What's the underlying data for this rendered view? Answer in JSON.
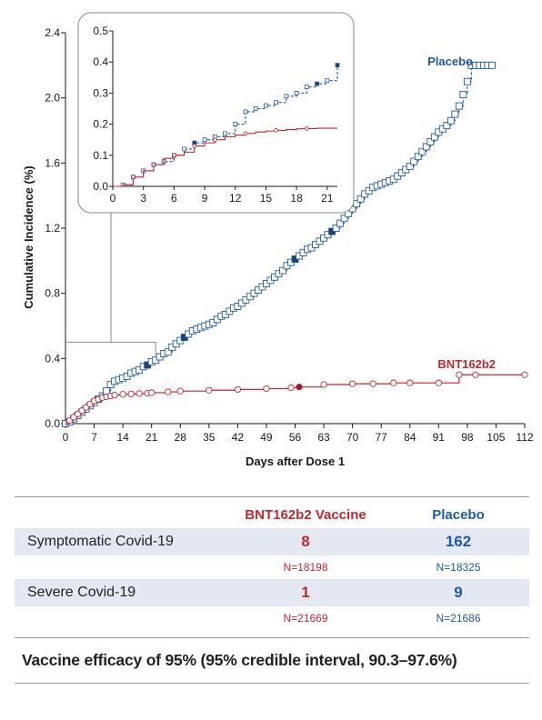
{
  "chart_data": {
    "type": "line",
    "xlabel": "Days after Dose 1",
    "ylabel": "Cumulative Incidence (%)",
    "xlim": [
      0,
      112
    ],
    "ylim": [
      0,
      2.4
    ],
    "x_ticks": [
      "0",
      "7",
      "14",
      "21",
      "28",
      "35",
      "42",
      "49",
      "56",
      "63",
      "70",
      "77",
      "84",
      "91",
      "98",
      "105",
      "112"
    ],
    "y_ticks": [
      "0.0",
      "0.4",
      "0.8",
      "1.2",
      "1.6",
      "2.0",
      "2.4"
    ],
    "series": [
      {
        "name": "Placebo",
        "color": "#1f5aa6",
        "marker": "square",
        "x": [
          0,
          1,
          2,
          3,
          4,
          5,
          6,
          7,
          8,
          9,
          10,
          11,
          12,
          13,
          14,
          15,
          16,
          17,
          18,
          19,
          20,
          21,
          22,
          23,
          24,
          25,
          26,
          27,
          28,
          29,
          30,
          31,
          32,
          33,
          34,
          35,
          36,
          37,
          38,
          39,
          40,
          41,
          42,
          43,
          44,
          45,
          46,
          47,
          48,
          49,
          50,
          51,
          52,
          53,
          54,
          55,
          56,
          57,
          58,
          59,
          60,
          61,
          62,
          63,
          64,
          65,
          66,
          67,
          68,
          69,
          70,
          71,
          72,
          73,
          74,
          75,
          76,
          77,
          78,
          79,
          80,
          81,
          82,
          83,
          84,
          85,
          86,
          87,
          88,
          89,
          90,
          91,
          92,
          93,
          94,
          95,
          96,
          97,
          98,
          99,
          100,
          101,
          102,
          103,
          104
        ],
        "y": [
          0,
          0.01,
          0.03,
          0.05,
          0.07,
          0.09,
          0.11,
          0.13,
          0.15,
          0.17,
          0.2,
          0.24,
          0.26,
          0.27,
          0.28,
          0.29,
          0.31,
          0.32,
          0.33,
          0.35,
          0.36,
          0.38,
          0.39,
          0.41,
          0.43,
          0.44,
          0.47,
          0.49,
          0.51,
          0.53,
          0.55,
          0.57,
          0.58,
          0.59,
          0.6,
          0.61,
          0.62,
          0.64,
          0.66,
          0.67,
          0.69,
          0.71,
          0.72,
          0.74,
          0.76,
          0.78,
          0.8,
          0.82,
          0.84,
          0.86,
          0.88,
          0.9,
          0.92,
          0.94,
          0.97,
          0.99,
          1.01,
          1.03,
          1.05,
          1.07,
          1.08,
          1.1,
          1.12,
          1.14,
          1.16,
          1.18,
          1.2,
          1.23,
          1.26,
          1.29,
          1.32,
          1.35,
          1.38,
          1.41,
          1.43,
          1.45,
          1.46,
          1.47,
          1.48,
          1.49,
          1.5,
          1.52,
          1.54,
          1.56,
          1.58,
          1.61,
          1.64,
          1.67,
          1.7,
          1.73,
          1.76,
          1.79,
          1.81,
          1.83,
          1.86,
          1.9,
          1.95,
          2.02,
          2.1,
          2.2,
          2.2,
          2.2,
          2.2,
          2.2,
          2.2
        ]
      },
      {
        "name": "BNT162b2",
        "color": "#c3282f",
        "marker": "circle",
        "x": [
          0,
          1,
          2,
          3,
          4,
          5,
          6,
          7,
          8,
          9,
          10,
          11,
          12,
          14,
          16,
          18,
          20,
          21,
          25,
          28,
          35,
          42,
          49,
          55,
          57,
          63,
          70,
          75,
          80,
          84,
          91,
          96,
          100,
          112
        ],
        "y": [
          0,
          0.02,
          0.04,
          0.06,
          0.08,
          0.1,
          0.12,
          0.14,
          0.15,
          0.16,
          0.165,
          0.17,
          0.175,
          0.18,
          0.182,
          0.185,
          0.187,
          0.19,
          0.195,
          0.2,
          0.205,
          0.21,
          0.215,
          0.22,
          0.225,
          0.24,
          0.245,
          0.245,
          0.25,
          0.25,
          0.25,
          0.3,
          0.3,
          0.3
        ]
      }
    ],
    "inset": {
      "xlim": [
        0,
        22
      ],
      "ylim": [
        0,
        0.5
      ],
      "x_ticks": [
        "0",
        "3",
        "6",
        "9",
        "12",
        "15",
        "18",
        "21"
      ],
      "y_ticks": [
        "0.0",
        "0.1",
        "0.2",
        "0.3",
        "0.4",
        "0.5"
      ],
      "series": [
        {
          "name": "Placebo",
          "x": [
            0,
            1,
            2,
            3,
            4,
            5,
            6,
            7,
            8,
            9,
            10,
            11,
            12,
            13,
            14,
            15,
            16,
            17,
            18,
            19,
            20,
            21,
            22
          ],
          "y": [
            0,
            0.005,
            0.03,
            0.05,
            0.07,
            0.08,
            0.1,
            0.12,
            0.14,
            0.15,
            0.16,
            0.17,
            0.2,
            0.24,
            0.25,
            0.26,
            0.27,
            0.29,
            0.3,
            0.32,
            0.33,
            0.34,
            0.39
          ]
        },
        {
          "name": "BNT162b2",
          "x": [
            0,
            1,
            2,
            3,
            4,
            5,
            6,
            7,
            8,
            9,
            10,
            11,
            12,
            13,
            14,
            15,
            16,
            17,
            18,
            19,
            20,
            21,
            22
          ],
          "y": [
            0,
            0.005,
            0.03,
            0.05,
            0.07,
            0.09,
            0.1,
            0.11,
            0.13,
            0.14,
            0.15,
            0.16,
            0.165,
            0.17,
            0.175,
            0.178,
            0.18,
            0.183,
            0.185,
            0.186,
            0.187,
            0.187,
            0.187
          ]
        }
      ]
    }
  },
  "table": {
    "headers": [
      "BNT162b2 Vaccine",
      "Placebo"
    ],
    "rows": [
      {
        "label": "Symptomatic Covid-19",
        "vaccine": "8",
        "placebo": "162",
        "vaccine_n": "N=18198",
        "placebo_n": "N=18325"
      },
      {
        "label": "Severe Covid-19",
        "vaccine": "1",
        "placebo": "9",
        "vaccine_n": "N=21669",
        "placebo_n": "N=21686"
      }
    ],
    "efficacy": "Vaccine efficacy of 95% (95% credible interval, 90.3–97.6%)"
  }
}
